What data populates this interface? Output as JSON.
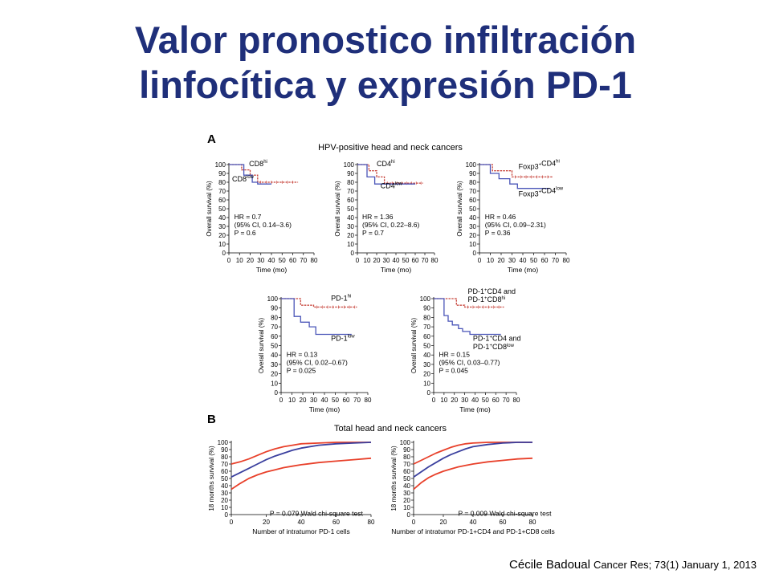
{
  "slide": {
    "title_line1": "Valor pronostico infiltración",
    "title_line2": "linfocítica y expresión PD-1",
    "citation_author": "Cécile Badoual",
    "citation_journal": "Cancer Res; 73(1) January 1, 2013"
  },
  "figure": {
    "panel_a_letter": "A",
    "panel_a_title": "HPV-positive head and neck cancers",
    "panel_b_letter": "B",
    "panel_b_title": "Total head and neck cancers"
  },
  "colors": {
    "title": "#1f2f7a",
    "red": "#c8473f",
    "blue": "#4a55b8",
    "orange_red": "#e8402a",
    "dark_blue": "#3a3f9e"
  },
  "chart_data": [
    {
      "type": "line",
      "panel": "A1",
      "xlabel": "Time (mo)",
      "ylabel": "Overall survival (%)",
      "xlim": [
        0,
        80
      ],
      "ylim": [
        0,
        100
      ],
      "xticks": [
        0,
        10,
        20,
        30,
        40,
        50,
        60,
        70,
        80
      ],
      "yticks": [
        0,
        10,
        20,
        30,
        40,
        50,
        60,
        70,
        80,
        90,
        100
      ],
      "series": [
        {
          "name": "CD8hi",
          "color": "#c8473f",
          "dashed": true,
          "x": [
            0,
            12,
            12,
            20,
            20,
            27,
            27,
            65
          ],
          "y": [
            100,
            100,
            94,
            94,
            88,
            88,
            80,
            80
          ]
        },
        {
          "name": "CD8low",
          "color": "#4a55b8",
          "dashed": false,
          "x": [
            0,
            14,
            14,
            22,
            22,
            27,
            27,
            40
          ],
          "y": [
            100,
            100,
            88,
            88,
            80,
            80,
            78,
            78
          ]
        }
      ],
      "labels": [
        {
          "main": "CD8",
          "sup": "hi",
          "x": 19,
          "y": 98
        },
        {
          "main": "CD8",
          "sup": "low",
          "x": 3,
          "y": 81
        }
      ],
      "stats": [
        "HR = 0.7",
        "(95% CI, 0.14–3.6)",
        "P = 0.6"
      ]
    },
    {
      "type": "line",
      "panel": "A2",
      "xlabel": "Time (mo)",
      "ylabel": "Overall survival (%)",
      "xlim": [
        0,
        80
      ],
      "ylim": [
        0,
        100
      ],
      "xticks": [
        0,
        10,
        20,
        30,
        40,
        50,
        60,
        70,
        80
      ],
      "yticks": [
        0,
        10,
        20,
        30,
        40,
        50,
        60,
        70,
        80,
        90,
        100
      ],
      "series": [
        {
          "name": "CD4hi",
          "color": "#c8473f",
          "dashed": true,
          "x": [
            0,
            12,
            12,
            20,
            20,
            28,
            28,
            68
          ],
          "y": [
            100,
            100,
            93,
            93,
            86,
            86,
            79,
            79
          ]
        },
        {
          "name": "CD4low",
          "color": "#4a55b8",
          "dashed": false,
          "x": [
            0,
            10,
            10,
            18,
            18,
            60
          ],
          "y": [
            100,
            100,
            86,
            86,
            78,
            78
          ]
        }
      ],
      "labels": [
        {
          "main": "CD4",
          "sup": "hi",
          "x": 20,
          "y": 98
        },
        {
          "main": "CD4",
          "sup": "low",
          "x": 24,
          "y": 73
        }
      ],
      "stats": [
        "HR = 1.36",
        "(95% CI, 0.22–8.6)",
        "P = 0.7"
      ]
    },
    {
      "type": "line",
      "panel": "A3",
      "xlabel": "Time (mo)",
      "ylabel": "Overall survival (%)",
      "xlim": [
        0,
        80
      ],
      "ylim": [
        0,
        100
      ],
      "xticks": [
        0,
        10,
        20,
        30,
        40,
        50,
        60,
        70,
        80
      ],
      "yticks": [
        0,
        10,
        20,
        30,
        40,
        50,
        60,
        70,
        80,
        90,
        100
      ],
      "series": [
        {
          "name": "Foxp3+CD4hi",
          "color": "#c8473f",
          "dashed": true,
          "x": [
            0,
            12,
            12,
            30,
            30,
            68
          ],
          "y": [
            100,
            100,
            93,
            93,
            86,
            86
          ]
        },
        {
          "name": "Foxp3+CD4low",
          "color": "#4a55b8",
          "dashed": false,
          "x": [
            0,
            10,
            10,
            18,
            18,
            28,
            28,
            35,
            35,
            65
          ],
          "y": [
            100,
            100,
            90,
            90,
            84,
            84,
            78,
            78,
            73,
            73
          ]
        }
      ],
      "labels": [
        {
          "main": "Foxp3",
          "sup2": "+",
          "main2": "CD4",
          "sup": "hi",
          "x": 36,
          "y": 95
        },
        {
          "main": "Foxp3",
          "sup2": "+",
          "main2": "CD4",
          "sup": "low",
          "x": 36,
          "y": 64
        }
      ],
      "stats": [
        "HR = 0.46",
        "(95% CI, 0.09–2.31)",
        "P = 0.36"
      ]
    },
    {
      "type": "line",
      "panel": "A4",
      "xlabel": "Time (mo)",
      "ylabel": "Overall survival (%)",
      "xlim": [
        0,
        80
      ],
      "ylim": [
        0,
        100
      ],
      "xticks": [
        0,
        10,
        20,
        30,
        40,
        50,
        60,
        70,
        80
      ],
      "yticks": [
        0,
        10,
        20,
        30,
        40,
        50,
        60,
        70,
        80,
        90,
        100
      ],
      "series": [
        {
          "name": "PD-1hi",
          "color": "#c8473f",
          "dashed": true,
          "x": [
            0,
            18,
            18,
            30,
            30,
            70
          ],
          "y": [
            100,
            100,
            93,
            93,
            91,
            91
          ]
        },
        {
          "name": "PD-1low",
          "color": "#4a55b8",
          "dashed": false,
          "x": [
            0,
            12,
            12,
            18,
            18,
            26,
            26,
            32,
            32,
            65
          ],
          "y": [
            100,
            100,
            81,
            81,
            75,
            75,
            70,
            70,
            62,
            62
          ]
        }
      ],
      "labels": [
        {
          "main": "PD-1",
          "sup": "hi",
          "x": 46,
          "y": 98
        },
        {
          "main": "PD-1",
          "sup": "low",
          "x": 46,
          "y": 55
        }
      ],
      "stats": [
        "HR = 0.13",
        "(95% CI, 0.02–0.67)",
        "P = 0.025"
      ]
    },
    {
      "type": "line",
      "panel": "A5",
      "xlabel": "Time (mo)",
      "ylabel": "Overall survival (%)",
      "xlim": [
        0,
        80
      ],
      "ylim": [
        0,
        100
      ],
      "xticks": [
        0,
        10,
        20,
        30,
        40,
        50,
        60,
        70,
        80
      ],
      "yticks": [
        0,
        10,
        20,
        30,
        40,
        50,
        60,
        70,
        80,
        90,
        100
      ],
      "series": [
        {
          "name": "PD-1+CD4 and PD-1+CD8hi",
          "color": "#c8473f",
          "dashed": true,
          "x": [
            0,
            22,
            22,
            30,
            30,
            68
          ],
          "y": [
            100,
            100,
            93,
            93,
            91,
            91
          ]
        },
        {
          "name": "PD-1+CD4 and PD-1+CD8low",
          "color": "#4a55b8",
          "dashed": false,
          "x": [
            0,
            10,
            10,
            14,
            14,
            18,
            18,
            24,
            24,
            28,
            28,
            35,
            35,
            65
          ],
          "y": [
            100,
            100,
            82,
            82,
            76,
            76,
            72,
            72,
            68,
            68,
            65,
            65,
            62,
            62
          ]
        }
      ],
      "labels": [],
      "stats": [
        "HR = 0.15",
        "(95% CI, 0.03–0.77)",
        "P = 0.045"
      ]
    },
    {
      "type": "line",
      "panel": "B1",
      "xlabel": "Number of intratumor PD-1 cells",
      "ylabel": "18 months survival (%)",
      "xlim": [
        0,
        80
      ],
      "ylim": [
        0,
        100
      ],
      "xticks": [
        0,
        20,
        40,
        60,
        80
      ],
      "yticks": [
        0,
        10,
        20,
        30,
        40,
        50,
        60,
        70,
        80,
        90,
        100
      ],
      "series": [
        {
          "name": "upper CI",
          "color": "#e8402a",
          "x": [
            0,
            5,
            10,
            15,
            20,
            25,
            30,
            35,
            40,
            50,
            60,
            70,
            80
          ],
          "y": [
            70,
            73,
            77,
            82,
            87,
            91,
            94,
            96,
            98,
            99,
            100,
            100,
            100
          ]
        },
        {
          "name": "estimate",
          "color": "#3a3f9e",
          "x": [
            0,
            5,
            10,
            15,
            20,
            25,
            30,
            35,
            40,
            50,
            60,
            70,
            80
          ],
          "y": [
            52,
            58,
            64,
            70,
            76,
            81,
            85,
            89,
            92,
            96,
            98,
            99,
            100
          ]
        },
        {
          "name": "lower CI",
          "color": "#e8402a",
          "x": [
            0,
            5,
            10,
            15,
            20,
            25,
            30,
            35,
            40,
            50,
            60,
            70,
            80
          ],
          "y": [
            35,
            43,
            50,
            55,
            59,
            62,
            65,
            67,
            69,
            72,
            74,
            76,
            78
          ]
        }
      ],
      "annotation": "P = 0.079 Wald chi-square test"
    },
    {
      "type": "line",
      "panel": "B2",
      "xlabel": "Number of intratumor PD-1+CD4 and PD-1+CD8 cells",
      "ylabel": "18 months survival (%)",
      "xlim": [
        0,
        80
      ],
      "ylim": [
        0,
        100
      ],
      "xticks": [
        0,
        20,
        40,
        60,
        80
      ],
      "yticks": [
        0,
        10,
        20,
        30,
        40,
        50,
        60,
        70,
        80,
        90,
        100
      ],
      "series": [
        {
          "name": "upper CI",
          "color": "#e8402a",
          "x": [
            0,
            5,
            10,
            15,
            20,
            25,
            30,
            35,
            40,
            50,
            60,
            70,
            80
          ],
          "y": [
            70,
            75,
            80,
            85,
            89,
            93,
            96,
            98,
            99,
            100,
            100,
            100,
            100
          ]
        },
        {
          "name": "estimate",
          "color": "#3a3f9e",
          "x": [
            0,
            5,
            10,
            15,
            20,
            25,
            30,
            35,
            40,
            50,
            60,
            70,
            80
          ],
          "y": [
            52,
            59,
            66,
            72,
            78,
            83,
            87,
            91,
            94,
            97,
            99,
            100,
            100
          ]
        },
        {
          "name": "lower CI",
          "color": "#e8402a",
          "x": [
            0,
            5,
            10,
            15,
            20,
            25,
            30,
            35,
            40,
            50,
            60,
            70,
            80
          ],
          "y": [
            35,
            44,
            51,
            56,
            60,
            63,
            66,
            68,
            70,
            73,
            75,
            77,
            78
          ]
        }
      ],
      "annotation": "P = 0.009 Wald chi-square test"
    }
  ]
}
